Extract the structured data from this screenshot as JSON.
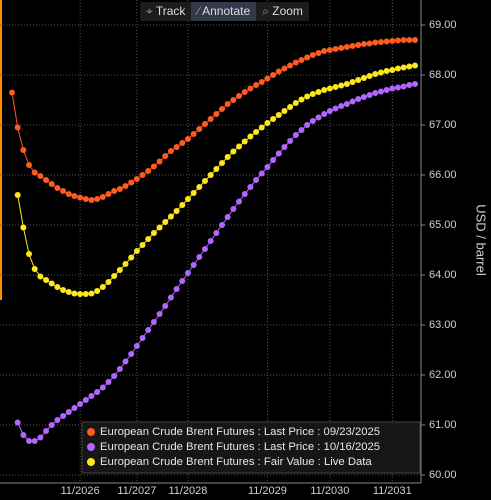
{
  "toolbar": {
    "buttons": [
      "Track",
      "Annotate",
      "Zoom"
    ],
    "active": "Annotate"
  },
  "chart_data": {
    "type": "line",
    "y_label": "USD / barrel",
    "categories": [
      null,
      null,
      null,
      null,
      null,
      null,
      null,
      null,
      null,
      null,
      null,
      null,
      "11/2026",
      null,
      null,
      null,
      null,
      null,
      null,
      null,
      null,
      null,
      "11/2027",
      null,
      null,
      null,
      null,
      null,
      null,
      null,
      null,
      "11/2028",
      null,
      null,
      null,
      null,
      null,
      null,
      null,
      null,
      null,
      null,
      null,
      null,
      null,
      "11/2029",
      null,
      null,
      null,
      null,
      null,
      null,
      null,
      null,
      null,
      null,
      "11/2030",
      null,
      null,
      null,
      null,
      null,
      null,
      null,
      null,
      null,
      null,
      "11/2031",
      null,
      null,
      null,
      null
    ],
    "ylim": [
      59.84,
      69.5
    ],
    "yticks": [
      {
        "value": 60,
        "label": "60.00"
      },
      {
        "value": 61,
        "label": "61.00"
      },
      {
        "value": 62,
        "label": "62.00"
      },
      {
        "value": 63,
        "label": "63.00"
      },
      {
        "value": 64,
        "label": "64.00"
      },
      {
        "value": 65,
        "label": "65.00"
      },
      {
        "value": 66,
        "label": "66.00"
      },
      {
        "value": 67,
        "label": "67.00"
      },
      {
        "value": 68,
        "label": "68.00"
      },
      {
        "value": 69,
        "label": "69.00"
      }
    ],
    "grid": true,
    "legend_position": "lower right",
    "series": [
      {
        "name": "European Crude Brent Futures : Last Price : 09/23/2025",
        "color": "#ff5a1f",
        "values": [
          67.65,
          66.95,
          66.5,
          66.2,
          66.05,
          65.98,
          65.9,
          65.82,
          65.74,
          65.68,
          65.62,
          65.58,
          65.55,
          65.52,
          65.5,
          65.52,
          65.56,
          65.62,
          65.68,
          65.72,
          65.78,
          65.85,
          65.92,
          66.0,
          66.08,
          66.17,
          66.27,
          66.38,
          66.48,
          66.56,
          66.64,
          66.72,
          66.82,
          66.92,
          67.02,
          67.12,
          67.22,
          67.32,
          67.42,
          67.5,
          67.58,
          67.66,
          67.73,
          67.8,
          67.86,
          67.93,
          68.0,
          68.07,
          68.13,
          68.19,
          68.25,
          68.3,
          68.35,
          68.4,
          68.44,
          68.48,
          68.5,
          68.52,
          68.54,
          68.56,
          68.58,
          68.6,
          68.62,
          68.63,
          68.65,
          68.66,
          68.67,
          68.68,
          68.69,
          68.7,
          68.7,
          68.7
        ]
      },
      {
        "name": "European Crude Brent Futures : Last Price : 10/16/2025",
        "color": "#b266ff",
        "values": [
          null,
          61.05,
          60.8,
          60.68,
          60.68,
          60.75,
          60.88,
          61.0,
          61.1,
          61.18,
          61.26,
          61.34,
          61.42,
          61.5,
          61.58,
          61.66,
          61.75,
          61.86,
          61.98,
          62.12,
          62.27,
          62.42,
          62.58,
          62.74,
          62.9,
          63.06,
          63.22,
          63.38,
          63.55,
          63.72,
          63.88,
          64.04,
          64.2,
          64.36,
          64.52,
          64.68,
          64.84,
          65.0,
          65.16,
          65.32,
          65.47,
          65.62,
          65.76,
          65.9,
          66.03,
          66.16,
          66.3,
          66.43,
          66.56,
          66.68,
          66.8,
          66.9,
          67.0,
          67.08,
          67.15,
          67.22,
          67.28,
          67.33,
          67.38,
          67.42,
          67.47,
          67.52,
          67.56,
          67.6,
          67.64,
          67.67,
          67.7,
          67.73,
          67.75,
          67.77,
          67.8,
          67.82
        ]
      },
      {
        "name": "European Crude Brent Futures : Fair Value : Live Data",
        "color": "#ffe81a",
        "values": [
          null,
          65.6,
          64.95,
          64.42,
          64.12,
          63.97,
          63.9,
          63.83,
          63.76,
          63.7,
          63.66,
          63.63,
          63.62,
          63.62,
          63.63,
          63.68,
          63.76,
          63.86,
          63.98,
          64.1,
          64.22,
          64.35,
          64.48,
          64.6,
          64.72,
          64.84,
          64.95,
          65.06,
          65.17,
          65.28,
          65.4,
          65.52,
          65.64,
          65.76,
          65.88,
          66.0,
          66.12,
          66.24,
          66.36,
          66.47,
          66.57,
          66.67,
          66.77,
          66.86,
          66.95,
          67.04,
          67.12,
          67.2,
          67.28,
          67.36,
          67.44,
          67.51,
          67.57,
          67.62,
          67.66,
          67.7,
          67.73,
          67.76,
          67.79,
          67.82,
          67.86,
          67.9,
          67.94,
          67.98,
          68.02,
          68.05,
          68.08,
          68.1,
          68.13,
          68.15,
          68.17,
          68.19
        ]
      }
    ]
  }
}
